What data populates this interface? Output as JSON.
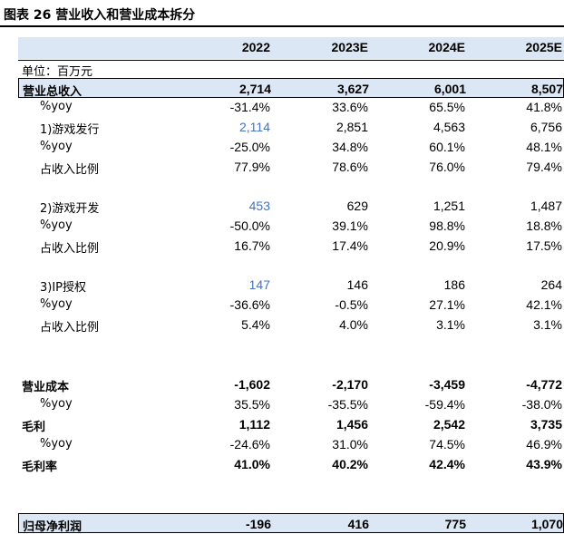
{
  "title": "图表 26 营业收入和营业成本拆分",
  "unit": "单位：百万元",
  "years": [
    "2022",
    "2023E",
    "2024E",
    "2025E"
  ],
  "rows": [
    {
      "label": "营业总收入",
      "values": [
        "2,714",
        "3,627",
        "6,001",
        "8,507"
      ]
    },
    {
      "label": "%yoy",
      "values": [
        "-31.4%",
        "33.6%",
        "65.5%",
        "41.8%"
      ]
    },
    {
      "label": "1)游戏发行",
      "values": [
        "2,114",
        "2,851",
        "4,563",
        "6,756"
      ]
    },
    {
      "label": "%yoy",
      "values": [
        "-25.0%",
        "34.8%",
        "60.1%",
        "48.1%"
      ]
    },
    {
      "label": "占收入比例",
      "values": [
        "77.9%",
        "78.6%",
        "76.0%",
        "79.4%"
      ]
    },
    {
      "label": "2)游戏开发",
      "values": [
        "453",
        "629",
        "1,251",
        "1,487"
      ]
    },
    {
      "label": "%yoy",
      "values": [
        "-50.0%",
        "39.1%",
        "98.8%",
        "18.8%"
      ]
    },
    {
      "label": "占收入比例",
      "values": [
        "16.7%",
        "17.4%",
        "20.9%",
        "17.5%"
      ]
    },
    {
      "label": "3)IP授权",
      "values": [
        "147",
        "146",
        "186",
        "264"
      ]
    },
    {
      "label": "%yoy",
      "values": [
        "-36.6%",
        "-0.5%",
        "27.1%",
        "42.1%"
      ]
    },
    {
      "label": "占收入比例",
      "values": [
        "5.4%",
        "4.0%",
        "3.1%",
        "3.1%"
      ]
    },
    {
      "label": "营业成本",
      "values": [
        "-1,602",
        "-2,170",
        "-3,459",
        "-4,772"
      ]
    },
    {
      "label": "%yoy",
      "values": [
        "35.5%",
        "-35.5%",
        "-59.4%",
        "-38.0%"
      ]
    },
    {
      "label": "毛利",
      "values": [
        "1,112",
        "1,456",
        "2,542",
        "3,735"
      ]
    },
    {
      "label": "%yoy",
      "values": [
        "-24.6%",
        "31.0%",
        "74.5%",
        "46.9%"
      ]
    },
    {
      "label": "毛利率",
      "values": [
        "41.0%",
        "40.2%",
        "42.4%",
        "43.9%"
      ]
    },
    {
      "label": "归母净利润",
      "values": [
        "-196",
        "416",
        "775",
        "1,070"
      ]
    }
  ]
}
